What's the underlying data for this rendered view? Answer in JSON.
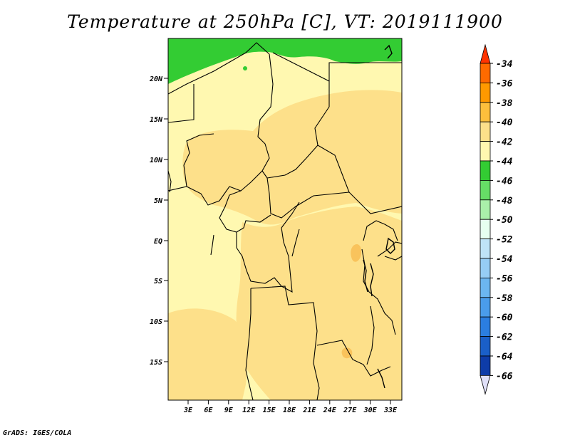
{
  "title": "Temperature at 250hPa [C], VT: 2019111900",
  "footer": "GrADS: IGES/COLA",
  "map": {
    "lat_labels": [
      "20N",
      "15N",
      "10N",
      "5N",
      "EQ",
      "5S",
      "10S",
      "15S"
    ],
    "lon_labels": [
      "3E",
      "6E",
      "9E",
      "12E",
      "15E",
      "18E",
      "21E",
      "24E",
      "27E",
      "30E",
      "33E"
    ],
    "colors": {
      "cold_band_green": "#33cc33",
      "pale_yellow": "#fff8b0",
      "light_orange": "#fde08a",
      "orange": "#f9c35c",
      "border": "#000000"
    }
  },
  "colorbar": {
    "labels": [
      "-34",
      "-36",
      "-38",
      "-40",
      "-42",
      "-44",
      "-46",
      "-48",
      "-50",
      "-52",
      "-54",
      "-56",
      "-58",
      "-60",
      "-62",
      "-64",
      "-66"
    ],
    "colors": [
      "#ff3300",
      "#ff6a00",
      "#ff9900",
      "#fcbf3c",
      "#fde08a",
      "#fff8b0",
      "#33cc33",
      "#66dd66",
      "#aaf0aa",
      "#e6fff0",
      "#bfe3f7",
      "#96cdf5",
      "#6cb6f0",
      "#4a9cea",
      "#2b7ee0",
      "#1a5fc8",
      "#0e3ca8",
      "#0a1f80",
      "#e0e0f8"
    ]
  }
}
